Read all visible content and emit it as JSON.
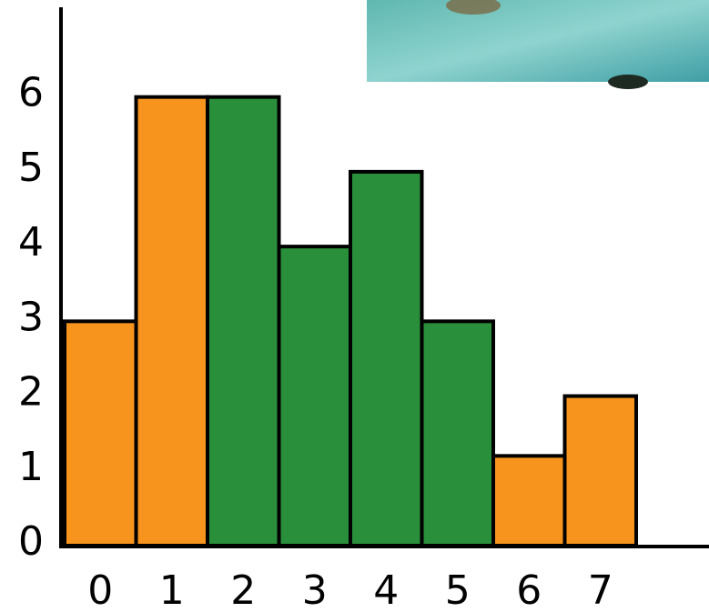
{
  "chart_data": {
    "type": "bar",
    "categories": [
      "0",
      "1",
      "2",
      "3",
      "4",
      "5",
      "6",
      "7"
    ],
    "values": [
      3,
      6,
      6,
      4,
      5,
      3,
      1.2,
      2
    ],
    "colors": [
      "#f7941d",
      "#f7941d",
      "#2a8f3a",
      "#2a8f3a",
      "#2a8f3a",
      "#2a8f3a",
      "#f7941d",
      "#f7941d"
    ],
    "ylim": [
      0,
      7.2
    ],
    "yticks": [
      0,
      1,
      2,
      3,
      4,
      5,
      6
    ],
    "grid": false
  }
}
